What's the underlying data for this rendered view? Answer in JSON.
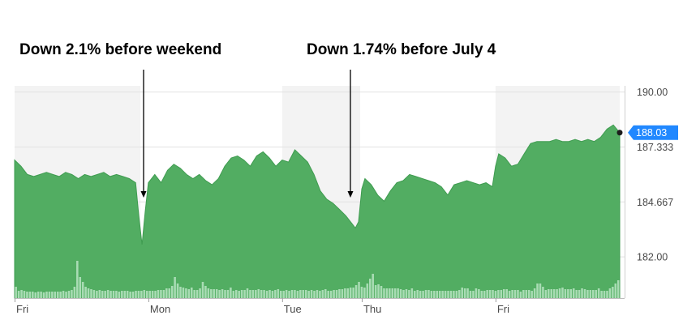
{
  "chart_data": {
    "type": "area",
    "annotations": [
      {
        "text": "Down 2.1% before weekend",
        "x": 39.5,
        "y": 185.4
      },
      {
        "text": "Down 1.74% before July 4",
        "x": 108.5,
        "y": 185.4
      }
    ],
    "y_ticks": [
      "190.00",
      "187.333",
      "184.667",
      "182.00"
    ],
    "y_tick_values": [
      190.0,
      187.333,
      184.667,
      182.0
    ],
    "ylim": [
      180.0,
      190.3
    ],
    "xlim": [
      0,
      190
    ],
    "x_ticks": [
      {
        "label": "Fri",
        "x": 0
      },
      {
        "label": "Mon",
        "x": 42
      },
      {
        "label": "Tue",
        "x": 84
      },
      {
        "label": "Thu",
        "x": 109
      },
      {
        "label": "Fri",
        "x": 151
      }
    ],
    "shaded_sessions": [
      [
        0,
        39.5
      ],
      [
        84,
        108.5
      ],
      [
        151,
        190
      ]
    ],
    "last_price": "188.03",
    "last_price_value": 188.03,
    "grid": "horizontal",
    "colors": {
      "area": "#52ad62",
      "area_stroke": "#3f9c50",
      "volume": "#a9dcb4",
      "badge": "#2188ff",
      "shade": "#f3f3f3"
    },
    "price": {
      "x": [
        0,
        2,
        4,
        6,
        8,
        10,
        12,
        14,
        16,
        18,
        20,
        22,
        24,
        26,
        28,
        30,
        32,
        34,
        36,
        38,
        39,
        40,
        41,
        42,
        44,
        46,
        48,
        50,
        52,
        54,
        56,
        58,
        60,
        62,
        64,
        66,
        68,
        70,
        72,
        74,
        76,
        78,
        80,
        82,
        84,
        86,
        88,
        90,
        92,
        94,
        96,
        98,
        100,
        102,
        104,
        106,
        107,
        108,
        109,
        110,
        112,
        114,
        116,
        118,
        120,
        122,
        124,
        126,
        128,
        130,
        132,
        134,
        136,
        138,
        140,
        142,
        144,
        146,
        148,
        150,
        151,
        152,
        154,
        156,
        158,
        160,
        162,
        164,
        166,
        168,
        170,
        172,
        174,
        176,
        178,
        180,
        182,
        184,
        186,
        188,
        190
      ],
      "y": [
        186.7,
        186.4,
        186.0,
        185.9,
        186.0,
        186.1,
        186.0,
        185.9,
        186.1,
        186.0,
        185.8,
        186.0,
        185.9,
        186.0,
        186.1,
        185.9,
        186.0,
        185.9,
        185.8,
        185.6,
        184.0,
        182.6,
        184.2,
        185.6,
        186.0,
        185.6,
        186.2,
        186.5,
        186.3,
        186.0,
        185.8,
        186.0,
        185.7,
        185.5,
        185.8,
        186.4,
        186.8,
        186.9,
        186.7,
        186.4,
        186.9,
        187.1,
        186.8,
        186.4,
        186.7,
        186.6,
        187.2,
        186.9,
        186.6,
        186.0,
        185.2,
        184.8,
        184.6,
        184.3,
        184.0,
        183.6,
        183.4,
        183.7,
        185.3,
        185.8,
        185.5,
        185.0,
        184.7,
        185.2,
        185.6,
        185.7,
        186.0,
        185.9,
        185.8,
        185.7,
        185.6,
        185.4,
        185.0,
        185.5,
        185.6,
        185.7,
        185.6,
        185.5,
        185.6,
        185.4,
        186.4,
        187.0,
        186.8,
        186.4,
        186.5,
        187.0,
        187.5,
        187.6,
        187.6,
        187.6,
        187.7,
        187.6,
        187.6,
        187.7,
        187.6,
        187.7,
        187.6,
        187.8,
        188.2,
        188.4,
        188.03
      ]
    },
    "volume": [
      14,
      9,
      10,
      9,
      8,
      8,
      8,
      7,
      8,
      8,
      7,
      8,
      8,
      8,
      8,
      8,
      8,
      9,
      8,
      9,
      10,
      14,
      46,
      26,
      20,
      14,
      12,
      11,
      10,
      9,
      10,
      9,
      9,
      10,
      9,
      9,
      9,
      8,
      9,
      9,
      9,
      8,
      8,
      9,
      9,
      9,
      10,
      9,
      9,
      9,
      9,
      10,
      10,
      10,
      12,
      12,
      15,
      26,
      18,
      14,
      13,
      12,
      11,
      13,
      10,
      10,
      12,
      20,
      15,
      12,
      11,
      11,
      11,
      10,
      11,
      10,
      10,
      13,
      9,
      10,
      9,
      10,
      10,
      12,
      10,
      10,
      10,
      11,
      10,
      10,
      9,
      10,
      9,
      10,
      11,
      9,
      9,
      10,
      9,
      10,
      10,
      9,
      10,
      10,
      10,
      9,
      10,
      9,
      10,
      9,
      10,
      11,
      9,
      9,
      10,
      10,
      11,
      11,
      12,
      12,
      13,
      13,
      16,
      20,
      14,
      13,
      18,
      24,
      30,
      16,
      17,
      15,
      12,
      12,
      12,
      12,
      12,
      12,
      11,
      10,
      11,
      10,
      12,
      9,
      10,
      9,
      9,
      10,
      10,
      9,
      9,
      9,
      9,
      9,
      9,
      9,
      9,
      9,
      9,
      10,
      13,
      12,
      12,
      9,
      9,
      12,
      11,
      9,
      9,
      10,
      10,
      10,
      9,
      10,
      10,
      11,
      11,
      9,
      10,
      10,
      10,
      8,
      10,
      10,
      10,
      9,
      12,
      18,
      18,
      14,
      10,
      11,
      11,
      11,
      11,
      12,
      13,
      11,
      11,
      11,
      12,
      10,
      10,
      12,
      11,
      10,
      10,
      10,
      10,
      12,
      9,
      9,
      9,
      12,
      14,
      18,
      22
    ]
  }
}
